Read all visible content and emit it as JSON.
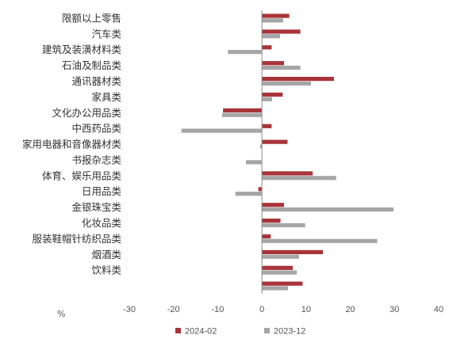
{
  "chart_data": {
    "type": "bar",
    "orientation": "horizontal",
    "categories": [
      "限额以上零售",
      "汽车类",
      "建筑及装潢材料类",
      "石油及制品类",
      "通讯器材类",
      "家具类",
      "文化办公用品类",
      "中西药品类",
      "家用电器和音像器材类",
      "书报杂志类",
      "体育、娱乐用品类",
      "日用品类",
      "金银珠宝类",
      "化妆品类",
      "服装鞋帽针纺织品类",
      "烟酒类",
      "饮料类",
      ""
    ],
    "series": [
      {
        "name": "2024-02",
        "color": "#a8343a",
        "values": [
          6.2,
          8.7,
          2.2,
          5.0,
          16.3,
          4.7,
          -8.8,
          2.2,
          5.8,
          0.0,
          11.5,
          -0.8,
          5.0,
          4.2,
          2.0,
          13.8,
          7.0,
          9.2
        ]
      },
      {
        "name": "2023-12",
        "color": "#a6a6a6",
        "values": [
          4.8,
          4.1,
          -7.7,
          8.7,
          11.1,
          2.3,
          -9.0,
          -18.2,
          -0.4,
          -3.6,
          16.8,
          -6.0,
          29.8,
          9.8,
          26.1,
          8.4,
          7.9,
          5.9
        ]
      }
    ],
    "xlim": [
      -30,
      40
    ],
    "xticks": [
      -30,
      -20,
      -10,
      0,
      10,
      20,
      30,
      40
    ],
    "unit": "%",
    "legend_position": "bottom",
    "grid": false
  }
}
